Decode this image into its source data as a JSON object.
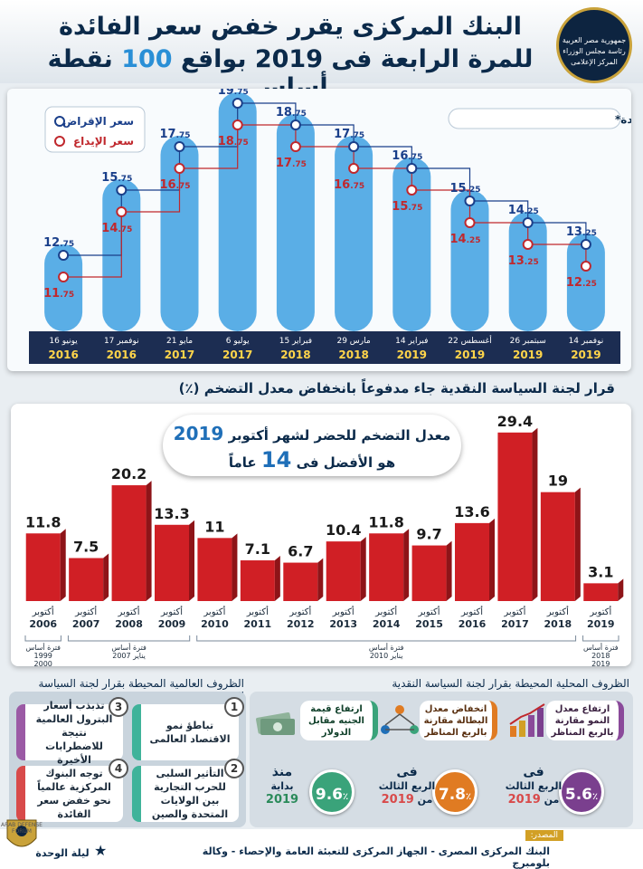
{
  "header": {
    "title_line1": "البنك المركزى يقرر خفض سعر الفائدة",
    "title_line2_a": "للمرة الرابعة فى 2019 بواقع",
    "title_line2_num": "100",
    "title_line2_b": "نقطة أساس",
    "emblem_text": [
      "جمهورية مصر العربية",
      "رئاسة مجلس الوزراء",
      "المركز الإعلامى"
    ]
  },
  "chart_data": [
    {
      "type": "bar",
      "title": "تسلسل زمنى لسعر الفائدة*",
      "categories": [
        "16 يونيو 2016",
        "17 نوفمبر 2016",
        "21 مايو 2017",
        "6 يوليو 2017",
        "15 فبراير 2018",
        "29 مارس 2018",
        "14 فبراير 2019",
        "22 أغسطس 2019",
        "26 سبتمبر 2019",
        "14 نوفمبر 2019"
      ],
      "x_day": [
        "16 يونيو",
        "17 نوفمبر",
        "21 مايو",
        "6 يوليو",
        "15 فبراير",
        "29 مارس",
        "14 فبراير",
        "22 أغسطس",
        "26 سبتمبر",
        "14 نوفمبر"
      ],
      "x_year": [
        "2016",
        "2016",
        "2017",
        "2017",
        "2018",
        "2018",
        "2019",
        "2019",
        "2019",
        "2019"
      ],
      "series": [
        {
          "name": "سعر الإقراض",
          "values": [
            12.75,
            15.75,
            17.75,
            19.75,
            18.75,
            17.75,
            16.75,
            15.25,
            14.25,
            13.25
          ],
          "color": "#1a3f8a"
        },
        {
          "name": "سعر الإيداع",
          "values": [
            11.75,
            14.75,
            16.75,
            18.75,
            17.75,
            16.75,
            15.75,
            14.25,
            13.25,
            12.25
          ],
          "color": "#c0282d"
        }
      ],
      "value_labels": {
        "lending": [
          [
            "12",
            ".75"
          ],
          [
            "15",
            ".75"
          ],
          [
            "17",
            ".75"
          ],
          [
            "19",
            ".75"
          ],
          [
            "18",
            ".75"
          ],
          [
            "17",
            ".75"
          ],
          [
            "16",
            ".75"
          ],
          [
            "15",
            ".25"
          ],
          [
            "14",
            ".25"
          ],
          [
            "13",
            ".25"
          ]
        ],
        "deposit": [
          [
            "11",
            ".75"
          ],
          [
            "14",
            ".75"
          ],
          [
            "16",
            ".75"
          ],
          [
            "18",
            ".75"
          ],
          [
            "17",
            ".75"
          ],
          [
            "16",
            ".75"
          ],
          [
            "15",
            ".75"
          ],
          [
            "14",
            ".25"
          ],
          [
            "13",
            ".25"
          ],
          [
            "12",
            ".25"
          ]
        ]
      },
      "bar_color": "#5aaee6",
      "ylim": [
        10,
        20
      ],
      "legend": "top-left"
    },
    {
      "type": "bar",
      "title": "قرار لجنة السياسة النقدية جاء مدفوعاً بانخفاض معدل التضخم (٪)",
      "categories": [
        "أكتوبر 2006",
        "أكتوبر 2007",
        "أكتوبر 2008",
        "أكتوبر 2009",
        "أكتوبر 2010",
        "أكتوبر 2011",
        "أكتوبر 2012",
        "أكتوبر 2013",
        "أكتوبر 2014",
        "أكتوبر 2015",
        "أكتوبر 2016",
        "أكتوبر 2017",
        "أكتوبر 2018",
        "أكتوبر 2019"
      ],
      "x_month": "أكتوبر",
      "x_year": [
        "2006",
        "2007",
        "2008",
        "2009",
        "2010",
        "2011",
        "2012",
        "2013",
        "2014",
        "2015",
        "2016",
        "2017",
        "2018",
        "2019"
      ],
      "values": [
        11.8,
        7.5,
        20.2,
        13.3,
        11,
        7.1,
        6.7,
        10.4,
        11.8,
        9.7,
        13.6,
        29.4,
        19,
        3.1
      ],
      "value_labels": [
        "11.8",
        "7.5",
        "20.2",
        "13.3",
        "11",
        "7.1",
        "6.7",
        "10.4",
        "11.8",
        "9.7",
        "13.6",
        "29.4",
        "19",
        "3.1"
      ],
      "bar_color": "#d01f25",
      "ylim": [
        0,
        30
      ],
      "base_periods": [
        {
          "label": [
            "فترة أساس",
            "1999",
            "2000"
          ],
          "from": 0,
          "to": 0
        },
        {
          "label": [
            "فترة أساس",
            "يناير 2007"
          ],
          "from": 1,
          "to": 3
        },
        {
          "label": [
            "فترة أساس",
            "يناير 2010"
          ],
          "from": 4,
          "to": 12
        },
        {
          "label": [
            "فترة أساس",
            "2018",
            "2019"
          ],
          "from": 13,
          "to": 13
        }
      ]
    }
  ],
  "callout": {
    "line1_a": "معدل التضخم للحضر لشهر أكتوبر",
    "line1_year": "2019",
    "line2_a": "هو الأفضل فى",
    "line2_num": "14",
    "line2_b": "عاماً"
  },
  "global": {
    "title": "الظروف العالمية المحيطة بقرار لجنة السياسة النقدية",
    "items": [
      {
        "num": "1",
        "text": "تباطؤ نمو الاقتصاد العالمى"
      },
      {
        "num": "2",
        "text": "التأثير السلبى للحرب التجارية بين الولايات المتحدة والصين"
      },
      {
        "num": "3",
        "text": "تذبذب أسعار البترول العالمية نتيجة للاضطرابات الأخيرة"
      },
      {
        "num": "4",
        "text": "توجه البنوك المركزية عالمياً نحو خفض سعر الفائدة"
      }
    ]
  },
  "local": {
    "title": "الظروف المحلية المحيطة بقرار لجنة السياسة النقدية",
    "items": [
      {
        "tag": "ارتفاع معدل النمو مقارنة بالربع المناظر",
        "value": "5.6",
        "unit": "٪",
        "l1": "فى",
        "l2": "الربع الثالث",
        "l3": "من",
        "year": "2019",
        "color": "purple"
      },
      {
        "tag": "انخفاض معدل البطالة مقارنة بالربع المناظر",
        "value": "7.8",
        "unit": "٪",
        "l1": "فى",
        "l2": "الربع الثالث",
        "l3": "من",
        "year": "2019",
        "color": "orange"
      },
      {
        "tag": "ارتفاع قيمة الجنيه مقابل الدولار",
        "value": "9.6",
        "unit": "٪",
        "l1": "منذ",
        "l2": "بداية",
        "l3": "",
        "year": "2019",
        "color": "green"
      }
    ]
  },
  "footer": {
    "source_label": "المصدر:",
    "source_text": "البنك المركزى المصرى - الجهاز المركزى للتعبئة العامة والإحصاء - وكالة بلومبرج",
    "badge_text": "ليلة الوحدة",
    "watermark": "ARAB DEFENSE FORUM"
  }
}
